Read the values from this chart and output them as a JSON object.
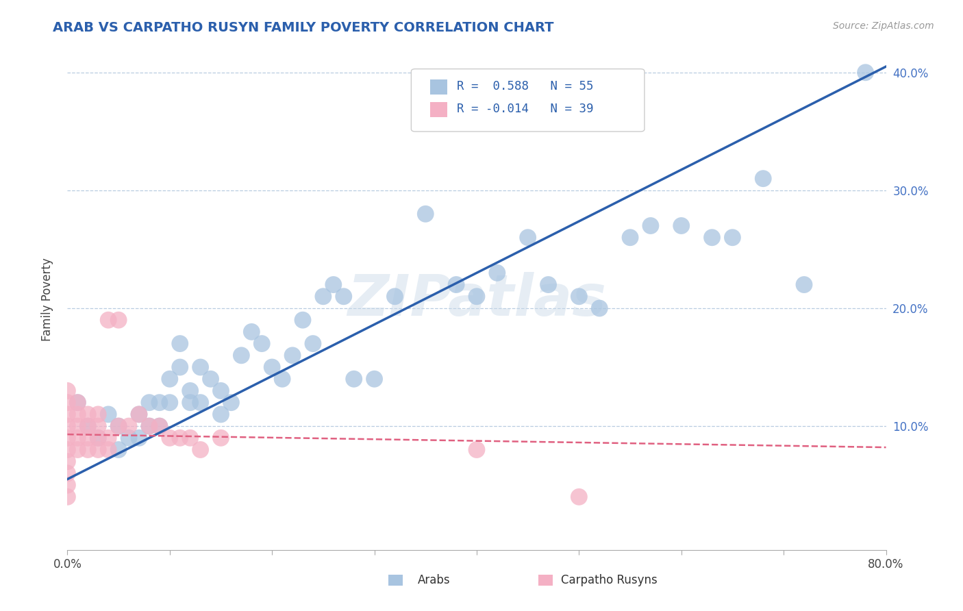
{
  "title": "ARAB VS CARPATHO RUSYN FAMILY POVERTY CORRELATION CHART",
  "source": "Source: ZipAtlas.com",
  "ylabel": "Family Poverty",
  "xlim": [
    0,
    0.8
  ],
  "ylim": [
    -0.005,
    0.42
  ],
  "arab_R": 0.588,
  "arab_N": 55,
  "rusyn_R": -0.014,
  "rusyn_N": 39,
  "arab_color": "#a8c4e0",
  "arab_color_edge": "#a8c4e0",
  "arab_line_color": "#2b5fac",
  "rusyn_color": "#f4b0c4",
  "rusyn_color_edge": "#f4b0c4",
  "rusyn_line_color": "#e06080",
  "watermark": "ZIPatlas",
  "background_color": "#ffffff",
  "grid_color": "#b8cce0",
  "arab_scatter_x": [
    0.01,
    0.02,
    0.03,
    0.04,
    0.05,
    0.05,
    0.06,
    0.07,
    0.07,
    0.08,
    0.08,
    0.09,
    0.09,
    0.1,
    0.1,
    0.11,
    0.11,
    0.12,
    0.12,
    0.13,
    0.13,
    0.14,
    0.15,
    0.15,
    0.16,
    0.17,
    0.18,
    0.19,
    0.2,
    0.21,
    0.22,
    0.23,
    0.24,
    0.25,
    0.26,
    0.27,
    0.28,
    0.3,
    0.32,
    0.35,
    0.38,
    0.4,
    0.42,
    0.45,
    0.47,
    0.5,
    0.52,
    0.55,
    0.57,
    0.6,
    0.63,
    0.65,
    0.68,
    0.72,
    0.78
  ],
  "arab_scatter_y": [
    0.12,
    0.1,
    0.09,
    0.11,
    0.1,
    0.08,
    0.09,
    0.11,
    0.09,
    0.12,
    0.1,
    0.12,
    0.1,
    0.14,
    0.12,
    0.15,
    0.17,
    0.13,
    0.12,
    0.12,
    0.15,
    0.14,
    0.13,
    0.11,
    0.12,
    0.16,
    0.18,
    0.17,
    0.15,
    0.14,
    0.16,
    0.19,
    0.17,
    0.21,
    0.22,
    0.21,
    0.14,
    0.14,
    0.21,
    0.28,
    0.22,
    0.21,
    0.23,
    0.26,
    0.22,
    0.21,
    0.2,
    0.26,
    0.27,
    0.27,
    0.26,
    0.26,
    0.31,
    0.22,
    0.4
  ],
  "rusyn_scatter_x": [
    0.0,
    0.0,
    0.0,
    0.0,
    0.0,
    0.0,
    0.0,
    0.0,
    0.0,
    0.0,
    0.01,
    0.01,
    0.01,
    0.01,
    0.01,
    0.02,
    0.02,
    0.02,
    0.02,
    0.03,
    0.03,
    0.03,
    0.03,
    0.04,
    0.04,
    0.04,
    0.05,
    0.05,
    0.06,
    0.07,
    0.08,
    0.09,
    0.1,
    0.11,
    0.12,
    0.13,
    0.15,
    0.4,
    0.5
  ],
  "rusyn_scatter_y": [
    0.07,
    0.08,
    0.09,
    0.1,
    0.11,
    0.12,
    0.13,
    0.06,
    0.05,
    0.04,
    0.08,
    0.09,
    0.1,
    0.11,
    0.12,
    0.09,
    0.1,
    0.11,
    0.08,
    0.09,
    0.1,
    0.11,
    0.08,
    0.09,
    0.19,
    0.08,
    0.1,
    0.19,
    0.1,
    0.11,
    0.1,
    0.1,
    0.09,
    0.09,
    0.09,
    0.08,
    0.09,
    0.08,
    0.04
  ],
  "arab_line_x": [
    0.0,
    0.8
  ],
  "arab_line_y": [
    0.055,
    0.405
  ],
  "rusyn_line_x": [
    0.0,
    0.8
  ],
  "rusyn_line_y": [
    0.093,
    0.082
  ]
}
